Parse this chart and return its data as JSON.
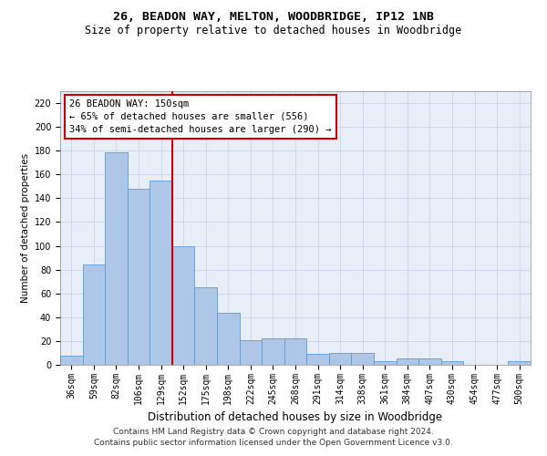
{
  "title": "26, BEADON WAY, MELTON, WOODBRIDGE, IP12 1NB",
  "subtitle": "Size of property relative to detached houses in Woodbridge",
  "xlabel": "Distribution of detached houses by size in Woodbridge",
  "ylabel": "Number of detached properties",
  "categories": [
    "36sqm",
    "59sqm",
    "82sqm",
    "106sqm",
    "129sqm",
    "152sqm",
    "175sqm",
    "198sqm",
    "222sqm",
    "245sqm",
    "268sqm",
    "291sqm",
    "314sqm",
    "338sqm",
    "361sqm",
    "384sqm",
    "407sqm",
    "430sqm",
    "454sqm",
    "477sqm",
    "500sqm"
  ],
  "values": [
    8,
    84,
    179,
    148,
    155,
    100,
    65,
    44,
    21,
    22,
    22,
    9,
    10,
    10,
    3,
    5,
    5,
    3,
    0,
    0,
    3
  ],
  "bar_color": "#aec6e8",
  "bar_edge_color": "#5b9bd5",
  "vline_color": "#cc0000",
  "vline_idx": 5,
  "annotation_line1": "26 BEADON WAY: 150sqm",
  "annotation_line2": "← 65% of detached houses are smaller (556)",
  "annotation_line3": "34% of semi-detached houses are larger (290) →",
  "annotation_box_color": "#ffffff",
  "annotation_box_edge": "#cc0000",
  "ylim": [
    0,
    230
  ],
  "yticks": [
    0,
    20,
    40,
    60,
    80,
    100,
    120,
    140,
    160,
    180,
    200,
    220
  ],
  "grid_color": "#c8d4e8",
  "background_color": "#e8eef8",
  "footer": "Contains HM Land Registry data © Crown copyright and database right 2024.\nContains public sector information licensed under the Open Government Licence v3.0.",
  "title_fontsize": 9.5,
  "subtitle_fontsize": 8.5,
  "xlabel_fontsize": 8.5,
  "ylabel_fontsize": 7.5,
  "tick_fontsize": 7,
  "annotation_fontsize": 7.5,
  "footer_fontsize": 6.5
}
